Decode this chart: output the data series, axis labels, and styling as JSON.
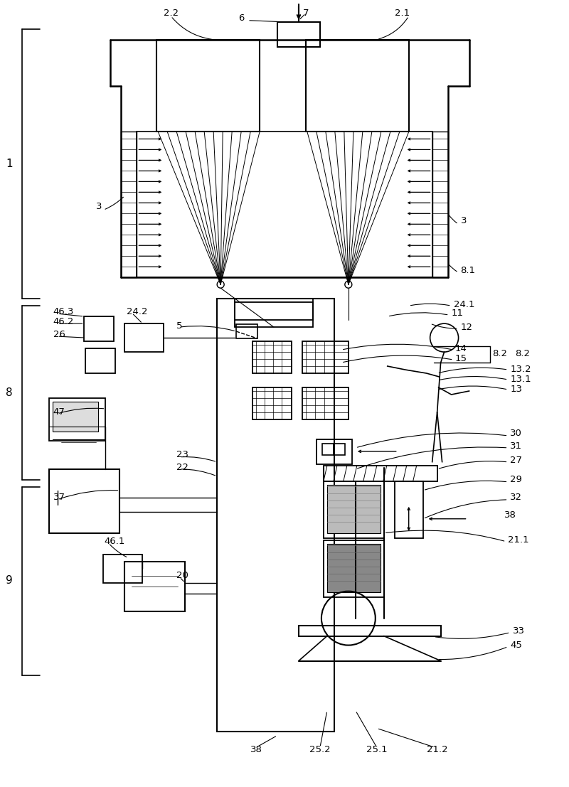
{
  "bg_color": "#ffffff",
  "line_color": "#000000",
  "fig_width": 8.0,
  "fig_height": 11.07
}
